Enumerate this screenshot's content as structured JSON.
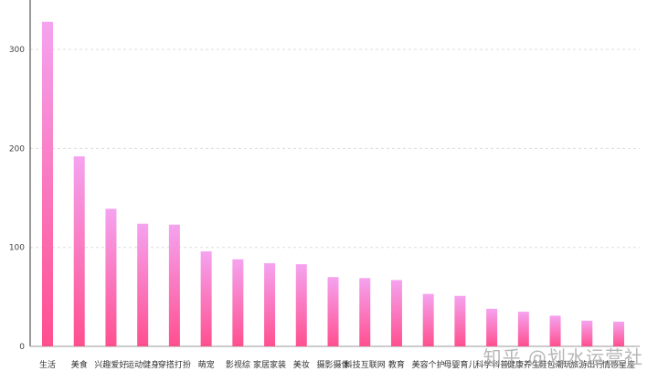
{
  "chart_data": {
    "type": "bar",
    "categories": [
      "生活",
      "美食",
      "兴趣爱好",
      "运动健身",
      "穿搭打扮",
      "萌宠",
      "影视综",
      "家居家装",
      "美妆",
      "摄影摄像",
      "科技互联网",
      "教育",
      "美容个护",
      "母婴育儿",
      "科学科普",
      "健康养生",
      "鞋包潮玩",
      "旅游出行",
      "情感星座"
    ],
    "values": [
      328,
      192,
      139,
      124,
      123,
      96,
      88,
      84,
      83,
      70,
      69,
      67,
      53,
      51,
      38,
      35,
      31,
      26,
      25
    ],
    "ylim": [
      0,
      350
    ],
    "yticks": [
      0,
      100,
      200,
      300
    ],
    "grid": true,
    "colors": {
      "top": "#f5a3f0",
      "bottom": "#ff4f8f"
    }
  },
  "watermark": "知乎 @划水运营社"
}
